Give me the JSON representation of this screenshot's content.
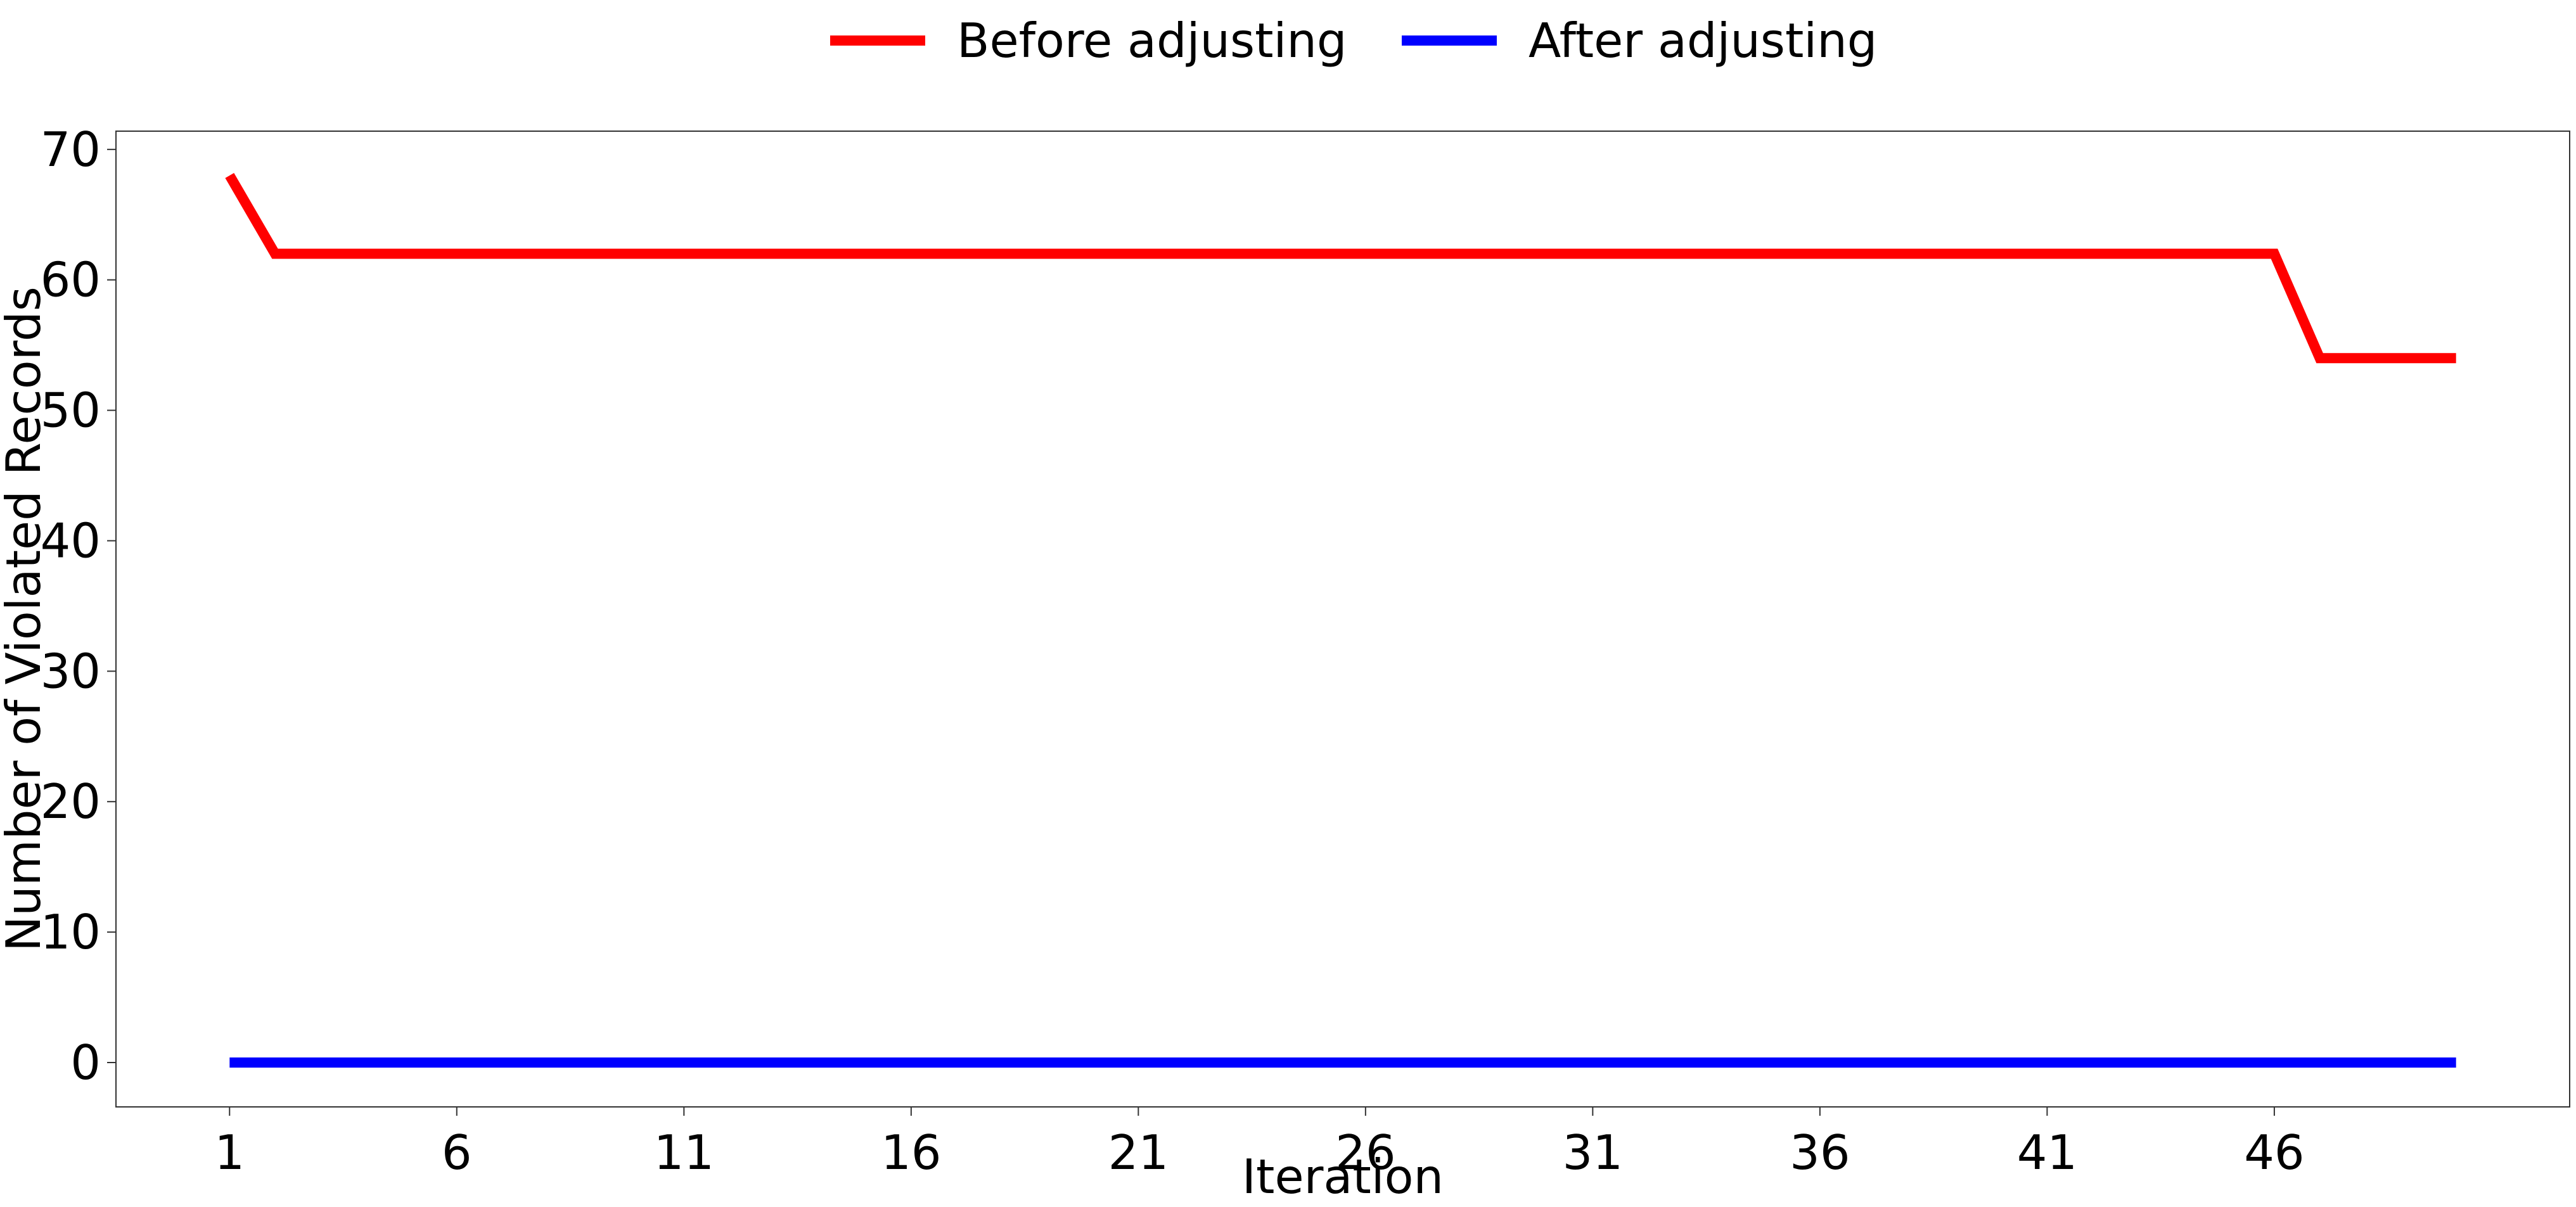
{
  "chart_data": {
    "type": "line",
    "xlabel": "Iteration",
    "ylabel": "Number of Violated Records",
    "x": [
      1,
      2,
      3,
      4,
      5,
      6,
      7,
      8,
      9,
      10,
      11,
      12,
      13,
      14,
      15,
      16,
      17,
      18,
      19,
      20,
      21,
      22,
      23,
      24,
      25,
      26,
      27,
      28,
      29,
      30,
      31,
      32,
      33,
      34,
      35,
      36,
      37,
      38,
      39,
      40,
      41,
      42,
      43,
      44,
      45,
      46,
      47,
      48,
      49,
      50
    ],
    "x_ticks": [
      1,
      6,
      11,
      16,
      21,
      26,
      31,
      36,
      41,
      46
    ],
    "y_ticks": [
      0,
      10,
      20,
      30,
      40,
      50,
      60,
      70
    ],
    "xlim": [
      -1.5,
      52.5
    ],
    "ylim": [
      -3.4,
      71.4
    ],
    "grid": false,
    "legend_position": "top-center",
    "series": [
      {
        "name": "Before adjusting",
        "color": "#ff0000",
        "values": [
          68,
          62,
          62,
          62,
          62,
          62,
          62,
          62,
          62,
          62,
          62,
          62,
          62,
          62,
          62,
          62,
          62,
          62,
          62,
          62,
          62,
          62,
          62,
          62,
          62,
          62,
          62,
          62,
          62,
          62,
          62,
          62,
          62,
          62,
          62,
          62,
          62,
          62,
          62,
          62,
          62,
          62,
          62,
          62,
          62,
          62,
          54,
          54,
          54,
          54
        ]
      },
      {
        "name": "After adjusting",
        "color": "#0000ff",
        "values": [
          0,
          0,
          0,
          0,
          0,
          0,
          0,
          0,
          0,
          0,
          0,
          0,
          0,
          0,
          0,
          0,
          0,
          0,
          0,
          0,
          0,
          0,
          0,
          0,
          0,
          0,
          0,
          0,
          0,
          0,
          0,
          0,
          0,
          0,
          0,
          0,
          0,
          0,
          0,
          0,
          0,
          0,
          0,
          0,
          0,
          0,
          0,
          0,
          0,
          0
        ]
      }
    ]
  }
}
